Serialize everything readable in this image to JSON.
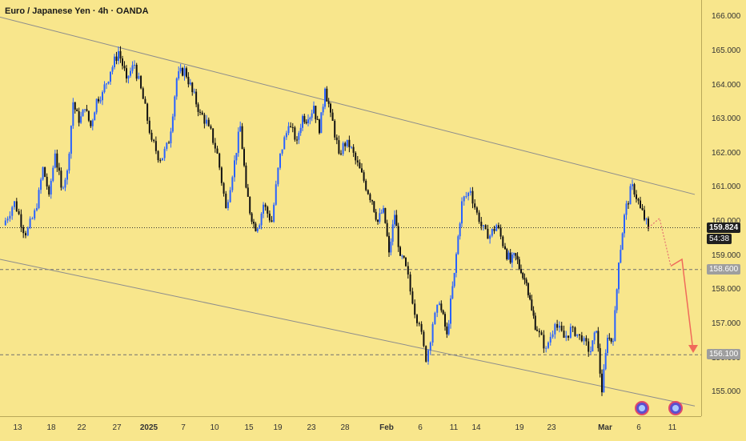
{
  "title": "Euro / Japanese Yen · 4h · OANDA",
  "chart_data": {
    "type": "candlestick",
    "symbol": "Euro / Japanese Yen",
    "timeframe": "4h",
    "source": "OANDA",
    "ylim": [
      154.3,
      166.5
    ],
    "y_ticks": [
      "155.000",
      "156.000",
      "157.000",
      "158.000",
      "159.000",
      "160.000",
      "161.000",
      "162.000",
      "163.000",
      "164.000",
      "165.000",
      "166.000"
    ],
    "x_ticks": [
      "13",
      "18",
      "22",
      "27",
      "2025",
      "7",
      "10",
      "15",
      "19",
      "23",
      "28",
      "Feb",
      "6",
      "11",
      "14",
      "19",
      "23",
      "Mar",
      "6",
      "11",
      "14"
    ],
    "x_bold_ticks": [
      "2025",
      "Feb",
      "Mar"
    ],
    "current_price": "159.824",
    "countdown": "54:38",
    "levels": [
      {
        "price": 158.6,
        "label": "158.600",
        "style": "dashed"
      },
      {
        "price": 156.1,
        "label": "156.100",
        "style": "dashed"
      }
    ],
    "trend_channel": {
      "upper": {
        "from": [
          "13",
          166.0
        ],
        "to": [
          "11",
          160.8
        ]
      },
      "lower": {
        "from": [
          "13",
          158.9
        ],
        "to": [
          "11",
          154.6
        ]
      }
    },
    "close_path": [
      [
        "13",
        159.9
      ],
      [
        "13",
        160.6
      ],
      [
        "13",
        159.6
      ],
      [
        "18",
        160.4
      ],
      [
        "18",
        161.6
      ],
      [
        "18",
        160.8
      ],
      [
        "18",
        162.0
      ],
      [
        "18",
        161.0
      ],
      [
        "22",
        161.5
      ],
      [
        "22",
        163.5
      ],
      [
        "22",
        162.9
      ],
      [
        "22",
        163.3
      ],
      [
        "22",
        162.8
      ],
      [
        "22",
        163.6
      ],
      [
        "27",
        163.8
      ],
      [
        "27",
        164.4
      ],
      [
        "27",
        165.0
      ],
      [
        "27",
        164.2
      ],
      [
        "2025",
        164.6
      ],
      [
        "2025",
        163.6
      ],
      [
        "2025",
        162.4
      ],
      [
        "2025",
        161.8
      ],
      [
        "7",
        162.3
      ],
      [
        "7",
        164.2
      ],
      [
        "7",
        164.5
      ],
      [
        "7",
        163.8
      ],
      [
        "10",
        163.2
      ],
      [
        "10",
        162.8
      ],
      [
        "10",
        162.0
      ],
      [
        "10",
        160.4
      ],
      [
        "15",
        161.8
      ],
      [
        "15",
        162.8
      ],
      [
        "15",
        161.0
      ],
      [
        "15",
        160.0
      ],
      [
        "15",
        159.8
      ],
      [
        "19",
        160.5
      ],
      [
        "19",
        160.0
      ],
      [
        "19",
        162.0
      ],
      [
        "19",
        162.8
      ],
      [
        "23",
        162.4
      ],
      [
        "23",
        163.1
      ],
      [
        "23",
        163.0
      ],
      [
        "23",
        163.4
      ],
      [
        "23",
        162.6
      ],
      [
        "23",
        163.9
      ],
      [
        "28",
        163.2
      ],
      [
        "28",
        162.0
      ],
      [
        "28",
        162.4
      ],
      [
        "28",
        161.8
      ],
      [
        "28",
        161.2
      ],
      [
        "Feb",
        160.6
      ],
      [
        "Feb",
        160.0
      ],
      [
        "Feb",
        160.4
      ],
      [
        "Feb",
        159.1
      ],
      [
        "Feb",
        160.2
      ],
      [
        "Feb",
        159.0
      ],
      [
        "6",
        158.7
      ],
      [
        "6",
        157.6
      ],
      [
        "6",
        157.0
      ],
      [
        "6",
        155.9
      ],
      [
        "6",
        157.0
      ],
      [
        "11",
        157.6
      ],
      [
        "11",
        156.7
      ],
      [
        "11",
        158.5
      ],
      [
        "14",
        160.6
      ],
      [
        "14",
        160.9
      ],
      [
        "14",
        160.0
      ],
      [
        "14",
        159.5
      ],
      [
        "14",
        159.9
      ],
      [
        "19",
        159.2
      ],
      [
        "19",
        158.8
      ],
      [
        "19",
        159.0
      ],
      [
        "19",
        158.5
      ],
      [
        "19",
        158.2
      ],
      [
        "19",
        157.4
      ],
      [
        "23",
        156.8
      ],
      [
        "23",
        156.3
      ],
      [
        "23",
        157.0
      ],
      [
        "23",
        156.6
      ],
      [
        "23",
        156.9
      ],
      [
        "23",
        156.5
      ],
      [
        "Mar",
        156.2
      ],
      [
        "Mar",
        156.8
      ],
      [
        "Mar",
        155.0
      ],
      [
        "Mar",
        156.6
      ],
      [
        "Mar",
        156.5
      ],
      [
        "Mar",
        158.8
      ],
      [
        "6",
        160.2
      ],
      [
        "6",
        161.1
      ],
      [
        "6",
        160.4
      ],
      [
        "6",
        159.8
      ]
    ],
    "projection": {
      "dotted": [
        [
          "6",
          159.824
        ],
        [
          "6",
          160.1
        ],
        [
          "6",
          158.7
        ]
      ],
      "solid": [
        [
          "6",
          158.7
        ],
        [
          "6",
          158.9
        ],
        [
          "11",
          156.2
        ]
      ]
    },
    "event_markers": [
      "6",
      "11"
    ]
  }
}
